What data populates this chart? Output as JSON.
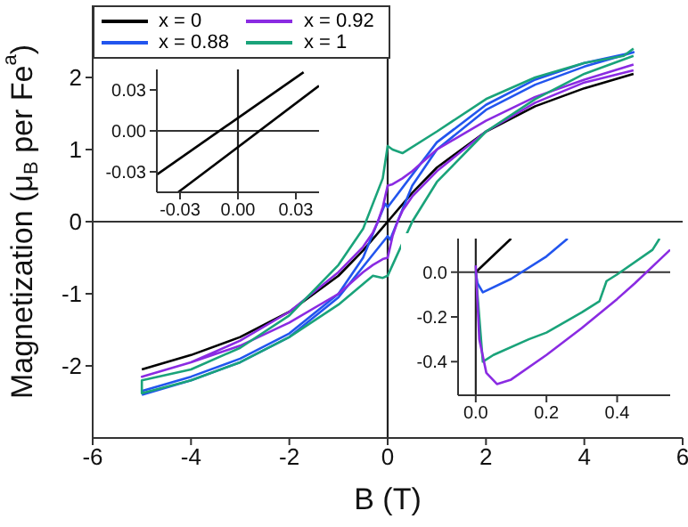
{
  "chart_data": [
    {
      "type": "line",
      "xlabel": "B (T)",
      "ylabel": "Magnetization (μ$_{B}$ per Fe$^{a}$)",
      "xlim": [
        -6,
        6
      ],
      "xticks": [
        -6,
        -4,
        -2,
        0,
        2,
        4,
        6
      ],
      "ylim": [
        -3,
        3
      ],
      "yticks": [
        -2,
        -1,
        0,
        1,
        2
      ],
      "legend": "top left",
      "ref_lines": [
        {
          "axis": "x",
          "value": 0
        },
        {
          "axis": "y",
          "value": 0
        }
      ],
      "series": [
        {
          "name": "x = 0",
          "color": "#000000",
          "x": [
            5,
            4,
            3,
            2,
            1,
            0.5,
            0,
            -0.5,
            -1,
            -2,
            -3,
            -4,
            -5
          ],
          "values": [
            2.05,
            1.85,
            1.6,
            1.25,
            0.75,
            0.4,
            0,
            -0.4,
            -0.75,
            -1.25,
            -1.6,
            -1.85,
            -2.05
          ]
        },
        {
          "name": "x = 0.88",
          "color": "#2255ee",
          "x": [
            -5,
            -4,
            -3,
            -2,
            -1,
            0,
            0.05,
            0.5,
            1,
            2,
            3,
            4,
            5,
            4,
            3,
            2,
            1,
            0,
            -0.05,
            -0.5,
            -1,
            -2,
            -3,
            -4,
            -5
          ],
          "values": [
            -2.4,
            -2.2,
            -1.95,
            -1.6,
            -1.05,
            -0.2,
            -0.25,
            0.5,
            1,
            1.55,
            1.9,
            2.15,
            2.35,
            2.2,
            1.97,
            1.62,
            1.1,
            0.2,
            0.25,
            -0.5,
            -1,
            -1.55,
            -1.9,
            -2.15,
            -2.35
          ]
        },
        {
          "name": "x = 0.92",
          "color": "#8a2be2",
          "x": [
            5,
            4,
            3,
            2,
            1,
            0.5,
            0.3,
            0.1,
            0,
            -0.05,
            -0.1,
            -0.2,
            -0.3,
            -0.5,
            -1,
            -2,
            -3,
            -4,
            -5,
            -4,
            -3,
            -2,
            -1,
            -0.5,
            -0.3,
            -0.1,
            0,
            0.05,
            0.1,
            0.2,
            0.3,
            0.5,
            1,
            2,
            3,
            4,
            5
          ],
          "values": [
            2.18,
            1.97,
            1.73,
            1.4,
            1,
            0.7,
            0.6,
            0.52,
            0.5,
            0.35,
            0.2,
            0,
            -0.15,
            -0.35,
            -0.7,
            -1.25,
            -1.65,
            -1.95,
            -2.15,
            -1.95,
            -1.72,
            -1.4,
            -1,
            -0.7,
            -0.6,
            -0.52,
            -0.5,
            -0.35,
            -0.2,
            0,
            0.15,
            0.35,
            0.7,
            1.25,
            1.65,
            1.93,
            2.1
          ]
        },
        {
          "name": "x = 1",
          "color": "#1aa37a",
          "x": [
            5,
            4.8,
            4,
            3,
            2,
            1,
            0.3,
            0.1,
            0,
            -0.1,
            -0.5,
            -1,
            -2,
            -3,
            -4,
            -5,
            -5,
            -4,
            -3,
            -2,
            -1,
            -0.3,
            -0.1,
            0,
            0.1,
            0.5,
            1,
            2,
            3,
            4,
            5
          ],
          "values": [
            2.4,
            2.3,
            2.2,
            2,
            1.7,
            1.25,
            0.95,
            1,
            1.05,
            0.6,
            -0.1,
            -0.6,
            -1.3,
            -1.75,
            -2.05,
            -2.2,
            -2.38,
            -2.2,
            -1.95,
            -1.6,
            -1.15,
            -0.75,
            -0.78,
            -0.75,
            -0.6,
            0,
            0.55,
            1.25,
            1.7,
            2.05,
            2.3
          ]
        }
      ]
    },
    {
      "type": "line",
      "xlim": [
        -0.042,
        0.042
      ],
      "xticks": [
        {
          "value": -0.03,
          "label": "-0.03"
        },
        {
          "value": 0,
          "label": "0.00"
        },
        {
          "value": 0.03,
          "label": "0.03"
        }
      ],
      "ylim": [
        -0.045,
        0.045
      ],
      "yticks": [
        {
          "value": -0.03,
          "label": "-0.03"
        },
        {
          "value": 0,
          "label": "0.00"
        },
        {
          "value": 0.03,
          "label": "0.03"
        }
      ],
      "ref_lines": [
        {
          "axis": "x",
          "value": 0
        },
        {
          "axis": "y",
          "value": 0
        }
      ],
      "series": [
        {
          "color": "#000000",
          "x": [
            -0.042,
            0.034
          ],
          "values": [
            -0.032,
            0.043
          ]
        },
        {
          "color": "#000000",
          "x": [
            -0.031,
            0.042
          ],
          "values": [
            -0.045,
            0.033
          ]
        }
      ]
    },
    {
      "type": "line",
      "xlim": [
        -0.05,
        0.55
      ],
      "xticks": [
        {
          "value": 0,
          "label": "0.0"
        },
        {
          "value": 0.2,
          "label": "0.2"
        },
        {
          "value": 0.4,
          "label": "0.4"
        }
      ],
      "ylim": [
        -0.55,
        0.15
      ],
      "yticks": [
        {
          "value": -0.4,
          "label": "-0.4"
        },
        {
          "value": -0.2,
          "label": "-0.2"
        },
        {
          "value": 0,
          "label": "0.0"
        }
      ],
      "ref_lines": [
        {
          "axis": "x",
          "value": 0
        },
        {
          "axis": "y",
          "value": 0
        }
      ],
      "series": [
        {
          "color": "#000000",
          "x": [
            0,
            0.1
          ],
          "values": [
            0,
            0.15
          ]
        },
        {
          "color": "#2255ee",
          "x": [
            0,
            0.005,
            0.02,
            0.1,
            0.2,
            0.26
          ],
          "values": [
            0,
            -0.05,
            -0.09,
            -0.03,
            0.07,
            0.15
          ]
        },
        {
          "color": "#1aa37a",
          "x": [
            0,
            0.01,
            0.02,
            0.05,
            0.15,
            0.2,
            0.3,
            0.35,
            0.37,
            0.4,
            0.5,
            0.52
          ],
          "values": [
            0,
            -0.2,
            -0.4,
            -0.37,
            -0.3,
            -0.27,
            -0.18,
            -0.13,
            -0.04,
            -0.01,
            0.1,
            0.15
          ]
        },
        {
          "color": "#8a2be2",
          "x": [
            0,
            0.01,
            0.03,
            0.06,
            0.1,
            0.2,
            0.3,
            0.4,
            0.45,
            0.55
          ],
          "values": [
            0.03,
            -0.3,
            -0.45,
            -0.5,
            -0.48,
            -0.37,
            -0.25,
            -0.12,
            -0.05,
            0.1
          ]
        }
      ]
    }
  ]
}
